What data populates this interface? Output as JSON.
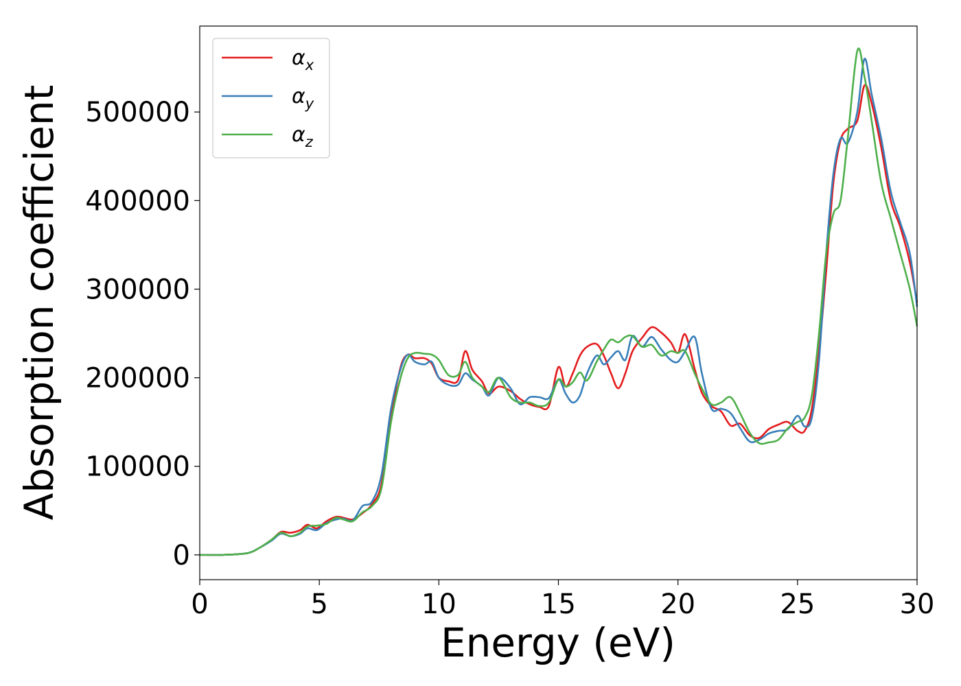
{
  "chart_data": {
    "type": "line",
    "xlabel": "Energy (eV)",
    "ylabel": "Absorption coefficient",
    "xlim": [
      0,
      30
    ],
    "ylim": [
      -28000,
      597000
    ],
    "x_ticks": [
      0,
      5,
      10,
      15,
      20,
      25,
      30
    ],
    "x_tick_labels": [
      "0",
      "5",
      "10",
      "15",
      "20",
      "25",
      "30"
    ],
    "y_ticks": [
      0,
      100000,
      200000,
      300000,
      400000,
      500000
    ],
    "y_tick_labels": [
      "0",
      "100000",
      "200000",
      "300000",
      "400000",
      "500000"
    ],
    "grid": false,
    "legend_position": "top-left",
    "series": [
      {
        "name": "αx",
        "symbol": "α",
        "subscript": "x",
        "color": "#e41a1c",
        "x": [
          0,
          1,
          2,
          2.5,
          3,
          3.4,
          3.8,
          4.2,
          4.5,
          4.9,
          5.3,
          5.7,
          6,
          6.4,
          6.8,
          7.2,
          7.6,
          8,
          8.4,
          8.7,
          9,
          9.4,
          9.7,
          10,
          10.4,
          10.8,
          11.1,
          11.4,
          11.8,
          12.1,
          12.5,
          13,
          13.4,
          13.8,
          14.2,
          14.6,
          15,
          15.3,
          15.6,
          15.9,
          16.2,
          16.6,
          16.9,
          17.2,
          17.5,
          17.8,
          18.1,
          18.5,
          18.9,
          19.3,
          19.7,
          20,
          20.3,
          20.7,
          21,
          21.4,
          21.8,
          22.2,
          22.6,
          23,
          23.4,
          23.8,
          24.2,
          24.6,
          25,
          25.3,
          25.6,
          25.9,
          26.2,
          26.5,
          26.8,
          27.1,
          27.5,
          27.8,
          28.1,
          28.5,
          28.9,
          29.3,
          29.7,
          30
        ],
        "values": [
          0,
          0,
          2000,
          8000,
          17000,
          26000,
          25000,
          28000,
          34000,
          30000,
          38000,
          43000,
          42000,
          40000,
          47000,
          57000,
          80000,
          155000,
          212000,
          226000,
          222000,
          222000,
          216000,
          200000,
          196000,
          197000,
          230000,
          209000,
          196000,
          182000,
          190000,
          185000,
          176000,
          170000,
          167000,
          168000,
          212000,
          190000,
          205000,
          225000,
          235000,
          238000,
          225000,
          205000,
          188000,
          205000,
          230000,
          245000,
          257000,
          251000,
          240000,
          228000,
          249000,
          210000,
          183000,
          168000,
          162000,
          146000,
          148000,
          135000,
          132000,
          142000,
          147000,
          150000,
          140000,
          140000,
          165000,
          230000,
          320000,
          420000,
          468000,
          481000,
          490000,
          530000,
          510000,
          460000,
          400000,
          370000,
          330000,
          285000
        ]
      },
      {
        "name": "αy",
        "symbol": "α",
        "subscript": "y",
        "color": "#377eb8",
        "x": [
          0,
          1,
          2,
          2.5,
          3,
          3.4,
          3.8,
          4.2,
          4.5,
          4.9,
          5.3,
          5.7,
          6,
          6.4,
          6.8,
          7.2,
          7.6,
          8,
          8.4,
          8.7,
          9,
          9.4,
          9.7,
          10,
          10.4,
          10.8,
          11.1,
          11.4,
          11.8,
          12.1,
          12.5,
          13,
          13.4,
          13.8,
          14.2,
          14.6,
          15,
          15.3,
          15.6,
          15.9,
          16.2,
          16.6,
          16.9,
          17.2,
          17.5,
          17.8,
          18.1,
          18.5,
          18.9,
          19.3,
          19.7,
          20,
          20.3,
          20.7,
          21,
          21.4,
          21.8,
          22.2,
          22.6,
          23,
          23.4,
          23.8,
          24.2,
          24.6,
          25,
          25.3,
          25.6,
          25.9,
          26.2,
          26.5,
          26.8,
          27.1,
          27.5,
          27.8,
          28.1,
          28.5,
          28.9,
          29.3,
          29.7,
          30
        ],
        "values": [
          0,
          0,
          2000,
          8000,
          16000,
          24000,
          21000,
          24000,
          30000,
          28000,
          36000,
          40000,
          41000,
          39000,
          55000,
          60000,
          90000,
          165000,
          210000,
          226000,
          218000,
          215000,
          218000,
          200000,
          192000,
          192000,
          205000,
          198000,
          190000,
          180000,
          200000,
          188000,
          170000,
          178000,
          178000,
          177000,
          198000,
          182000,
          172000,
          180000,
          205000,
          225000,
          215000,
          223000,
          230000,
          220000,
          247000,
          235000,
          246000,
          232000,
          220000,
          218000,
          230000,
          246000,
          205000,
          165000,
          165000,
          160000,
          143000,
          128000,
          130000,
          137000,
          140000,
          142000,
          157000,
          145000,
          155000,
          220000,
          340000,
          430000,
          470000,
          465000,
          500000,
          560000,
          520000,
          470000,
          410000,
          375000,
          340000,
          280000
        ]
      },
      {
        "name": "αz",
        "symbol": "α",
        "subscript": "z",
        "color": "#4daf4a",
        "x": [
          0,
          1,
          2,
          2.5,
          3,
          3.4,
          3.8,
          4.2,
          4.5,
          4.9,
          5.3,
          5.7,
          6,
          6.4,
          6.8,
          7.2,
          7.6,
          8,
          8.4,
          8.7,
          9,
          9.4,
          9.7,
          10,
          10.4,
          10.8,
          11.1,
          11.4,
          11.8,
          12.1,
          12.5,
          13,
          13.4,
          13.8,
          14.2,
          14.6,
          15,
          15.3,
          15.6,
          15.9,
          16.2,
          16.6,
          16.9,
          17.2,
          17.5,
          17.8,
          18.1,
          18.5,
          18.9,
          19.3,
          19.7,
          20,
          20.3,
          20.7,
          21,
          21.4,
          21.8,
          22.2,
          22.6,
          23,
          23.4,
          23.8,
          24.2,
          24.6,
          25,
          25.3,
          25.6,
          25.9,
          26.2,
          26.5,
          26.8,
          27.1,
          27.5,
          27.8,
          28.1,
          28.5,
          28.9,
          29.3,
          29.7,
          30
        ],
        "values": [
          0,
          0,
          2000,
          8000,
          17000,
          25000,
          21000,
          25000,
          32000,
          33000,
          35000,
          42000,
          40000,
          38000,
          48000,
          55000,
          75000,
          150000,
          200000,
          222000,
          228000,
          227000,
          226000,
          220000,
          203000,
          203000,
          218000,
          200000,
          190000,
          184000,
          200000,
          178000,
          172000,
          172000,
          168000,
          172000,
          198000,
          190000,
          195000,
          206000,
          197000,
          218000,
          232000,
          243000,
          240000,
          246000,
          247000,
          235000,
          237000,
          225000,
          230000,
          228000,
          230000,
          205000,
          188000,
          170000,
          172000,
          178000,
          160000,
          138000,
          126000,
          127000,
          130000,
          143000,
          150000,
          155000,
          180000,
          250000,
          340000,
          385000,
          400000,
          470000,
          569000,
          540000,
          490000,
          420000,
          380000,
          340000,
          300000,
          258000
        ]
      }
    ]
  }
}
